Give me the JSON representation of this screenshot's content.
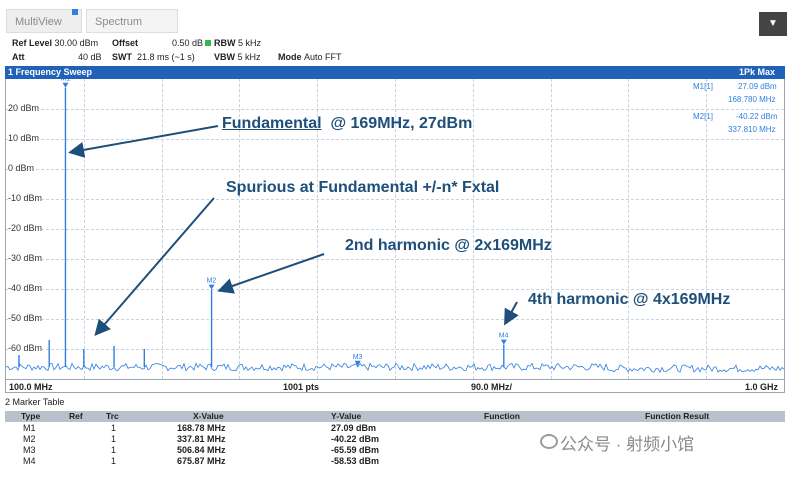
{
  "tabs": [
    {
      "label": "MultiView"
    },
    {
      "label": "Spectrum"
    }
  ],
  "settings": {
    "ref_level_label": "Ref Level",
    "ref_level": "30.00 dBm",
    "offset_label": "Offset",
    "offset": "0.50 dB",
    "rbw_label": "RBW",
    "rbw": "5 kHz",
    "att_label": "Att",
    "att": "40 dB",
    "swt_label": "SWT",
    "swt": "21.8 ms (~1 s)",
    "vbw_label": "VBW",
    "vbw": "5 kHz",
    "mode_label": "Mode",
    "mode": "Auto FFT",
    "rbw_color": "#39b54a"
  },
  "plot": {
    "title": "1 Frequency Sweep",
    "detector": "1Pk Max",
    "marker_readouts": [
      {
        "name": "M1[1]",
        "value": "27.09 dBm",
        "freq": "168.780 MHz"
      },
      {
        "name": "M2[1]",
        "value": "-40.22 dBm",
        "freq": "337.810 MHz"
      }
    ],
    "y_tick_labels": [
      "20 dBm",
      "10 dBm",
      "0 dBm",
      "-10 dBm",
      "-20 dBm",
      "-30 dBm",
      "-40 dBm",
      "-50 dBm",
      "-60 dBm"
    ],
    "x_start": "100.0 MHz",
    "points": "1001 pts",
    "span_per_div": "90.0 MHz/",
    "x_stop": "1.0 GHz",
    "marker_labels": [
      "M1",
      "M2",
      "M3",
      "M4"
    ],
    "header_color": "#2162b8",
    "trace_color": "#2f7fe0"
  },
  "annotations": {
    "fundamental_word": "Fundamental",
    "fundamental_rest": "@ 169MHz, 27dBm",
    "spurious": "Spurious at Fundamental +/-n* Fxtal",
    "second": "2nd harmonic @ 2x169MHz",
    "fourth": "4th harmonic @ 4x169MHz",
    "color": "#1e4f7a"
  },
  "marker_table": {
    "title": "2 Marker Table",
    "headers": [
      "Type",
      "Ref",
      "Trc",
      "X-Value",
      "Y-Value",
      "Function",
      "Function Result"
    ],
    "rows": [
      {
        "type": "M1",
        "ref": "",
        "trc": "1",
        "x": "168.78 MHz",
        "y": "27.09 dBm"
      },
      {
        "type": "M2",
        "ref": "",
        "trc": "1",
        "x": "337.81 MHz",
        "y": "-40.22 dBm"
      },
      {
        "type": "M3",
        "ref": "",
        "trc": "1",
        "x": "506.84 MHz",
        "y": "-65.59 dBm"
      },
      {
        "type": "M4",
        "ref": "",
        "trc": "1",
        "x": "675.87 MHz",
        "y": "-58.53 dBm"
      }
    ]
  },
  "chart_data": {
    "type": "line",
    "xlim": [
      100,
      1000
    ],
    "ylim": [
      -70,
      30
    ],
    "markers": [
      {
        "name": "M1",
        "x": 168.78,
        "y": 27.09
      },
      {
        "name": "M2",
        "x": 337.81,
        "y": -40.22
      },
      {
        "name": "M3",
        "x": 506.84,
        "y": -65.59
      },
      {
        "name": "M4",
        "x": 675.87,
        "y": -58.53
      }
    ],
    "spurs": [
      {
        "x": 115,
        "y": -62
      },
      {
        "x": 150,
        "y": -57
      },
      {
        "x": 190,
        "y": -60
      },
      {
        "x": 225,
        "y": -59
      },
      {
        "x": 260,
        "y": -60
      }
    ],
    "noise_floor": -66,
    "grid": true
  },
  "watermark": "公众号 · 射频小馆"
}
